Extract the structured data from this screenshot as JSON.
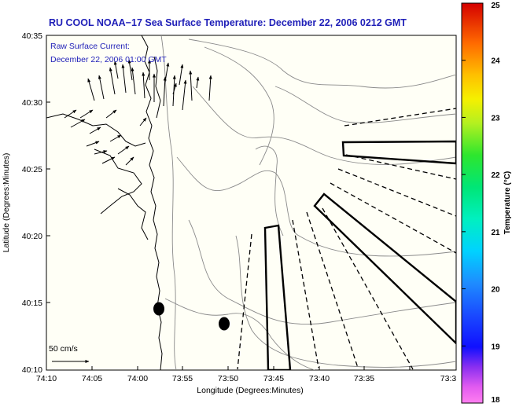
{
  "title": "RU COOL  NOAA−17  Sea Surface Temperature:  December 22, 2006 0212 GMT",
  "annotation": {
    "line1": "Raw Surface Current:",
    "line2": "December 22, 2006 01:00 GMT"
  },
  "axes": {
    "xlabel": "Longitude (Degrees:Minutes)",
    "ylabel": "Latitude (Degrees:Minutes)",
    "x_ticks": [
      "74:10",
      "74:05",
      "74:00",
      "73:55",
      "73:50",
      "73:45",
      "73:40",
      "73:35",
      "73:3"
    ],
    "y_ticks": [
      "40:35",
      "40:30",
      "40:25",
      "40:20",
      "40:15",
      "40:10"
    ]
  },
  "scale_label": "50 cm/s",
  "colorbar": {
    "label": "Temperature (°C)",
    "ticks": [
      "25",
      "24",
      "23",
      "22",
      "21",
      "20",
      "19",
      "18"
    ],
    "min": 18,
    "max": 25
  },
  "colors": {
    "title": "#1f1fb8",
    "background": "#fffff6",
    "contour": "#8a8a8a",
    "coast": "#000000"
  }
}
